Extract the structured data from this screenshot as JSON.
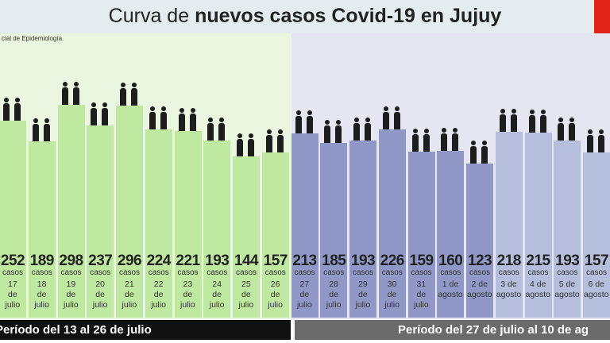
{
  "chart_data": {
    "type": "bar",
    "title_prefix": "Curva de",
    "title_bold": "nuevos casos Covid-19 en Jujuy",
    "source": "cial de Epidemiología.",
    "value_unit": "casos",
    "categories": [
      "17 de julio",
      "18 de julio",
      "19 de julio",
      "20 de julio",
      "21 de julio",
      "22 de julio",
      "23 de julio",
      "24 de julio",
      "25 de julio",
      "26 de julio",
      "27 de julio",
      "28 de julio",
      "29 de julio",
      "30 de julio",
      "31 de julio",
      "1 de agosto",
      "2 de agosto",
      "3 de agosto",
      "4 de agosto",
      "5 de agosto",
      "6 de agosto"
    ],
    "values": [
      252,
      189,
      298,
      237,
      296,
      224,
      221,
      193,
      144,
      157,
      213,
      185,
      193,
      226,
      159,
      160,
      123,
      218,
      215,
      193,
      157
    ],
    "colors": [
      "#bfe8a0",
      "#bfe8a0",
      "#bfe8a0",
      "#bfe8a0",
      "#bfe8a0",
      "#bfe8a0",
      "#bfe8a0",
      "#bfe8a0",
      "#bfe8a0",
      "#bfe8a0",
      "#8f98c6",
      "#8f98c6",
      "#8f98c6",
      "#8f98c6",
      "#8f98c6",
      "#8f98c6",
      "#8f98c6",
      "#b5bfdd",
      "#b5bfdd",
      "#b5bfdd",
      "#b5bfdd"
    ],
    "periods": [
      "Período del 13 al 26 de julio",
      "Período del 27 de julio al 10 de ag"
    ]
  }
}
